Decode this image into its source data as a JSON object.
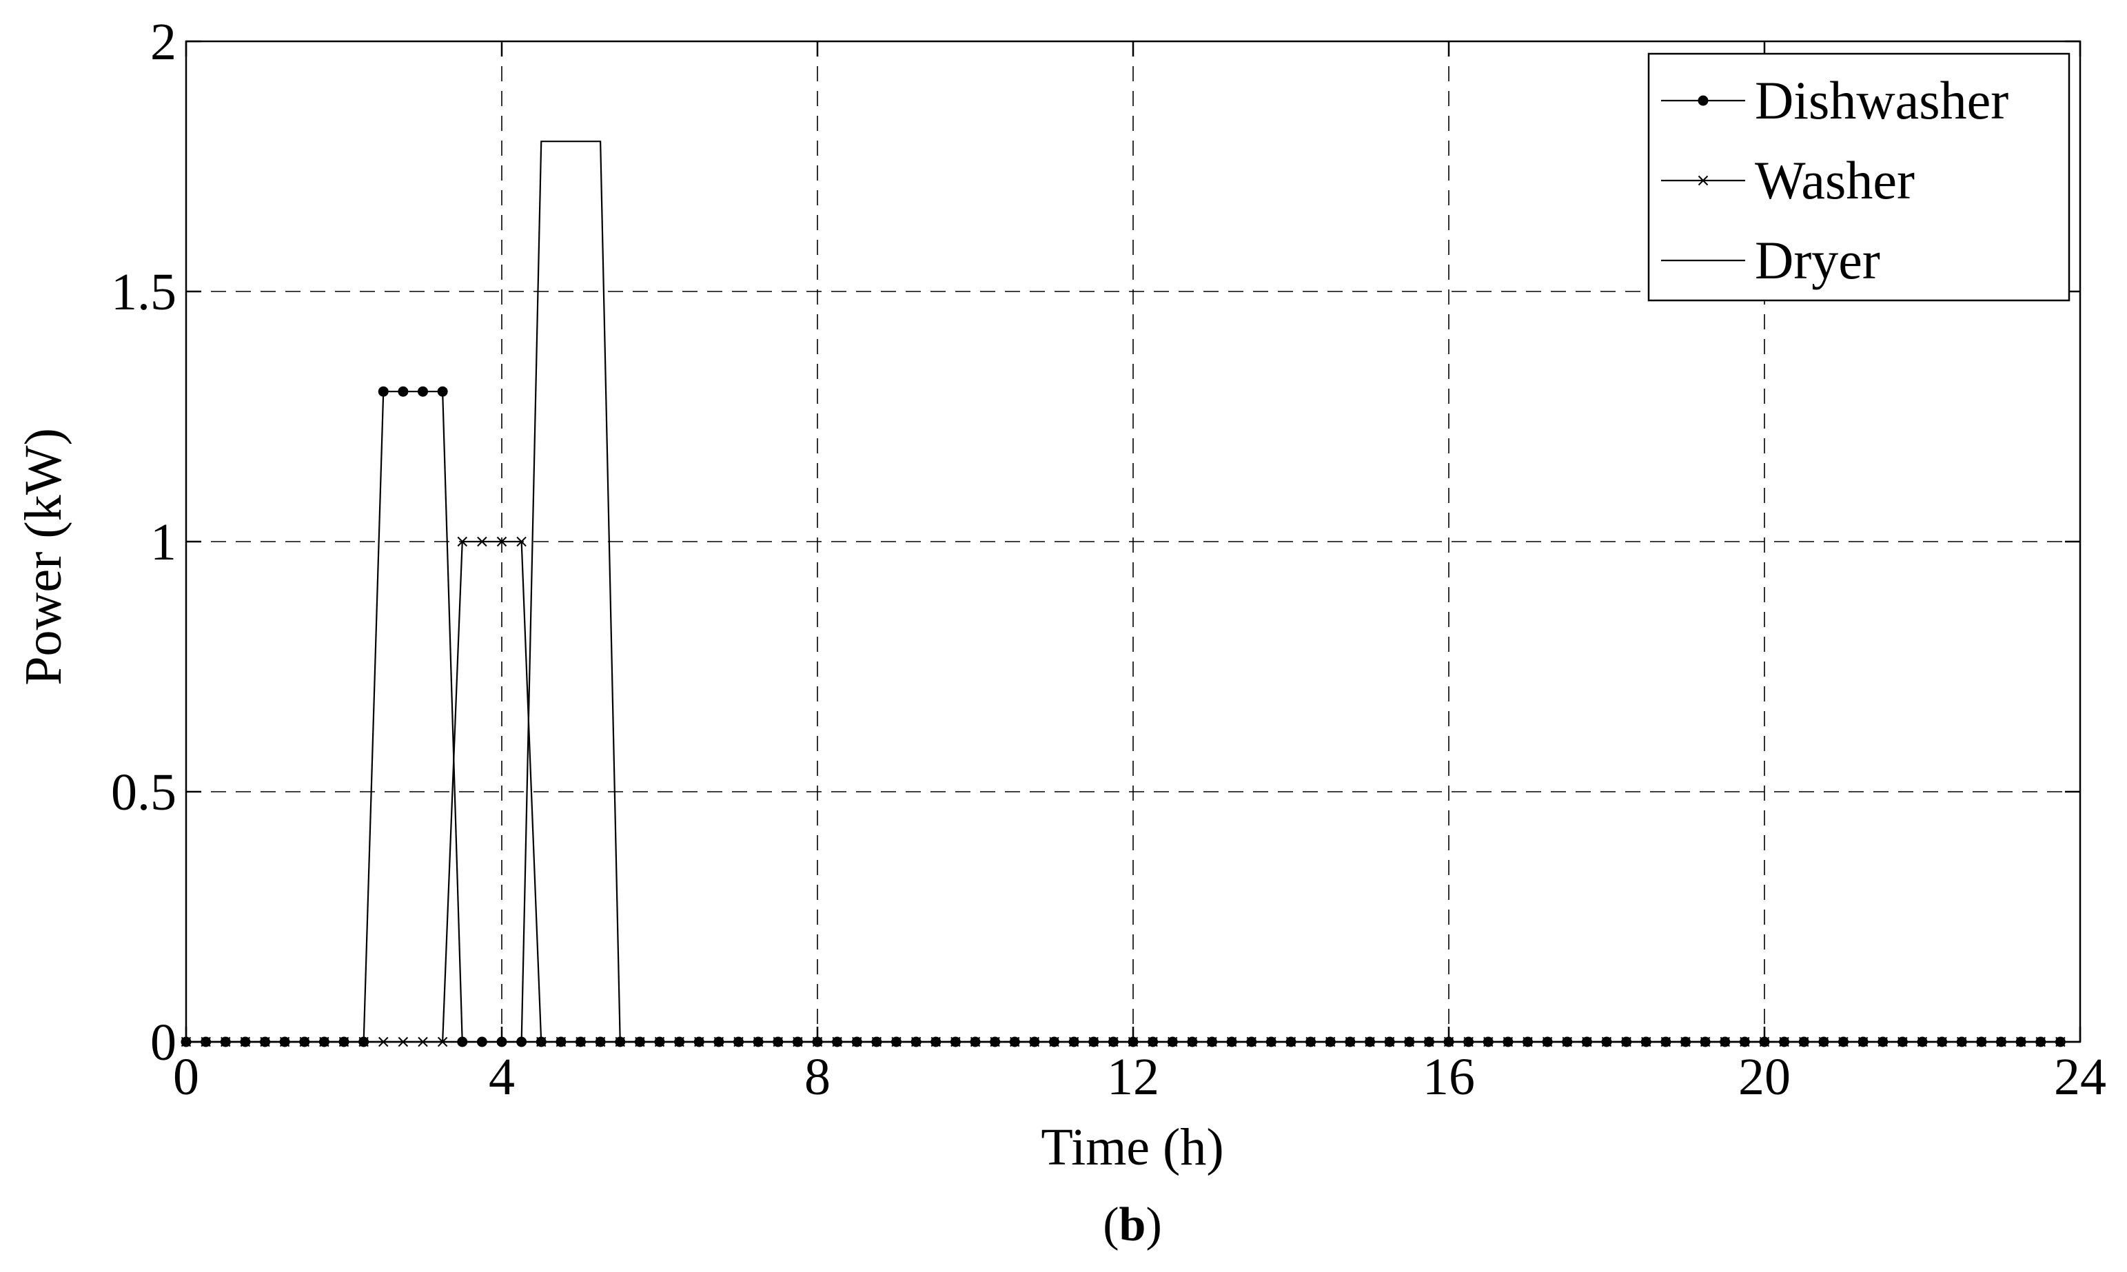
{
  "chart_data": {
    "type": "line",
    "xlabel": "Time (h)",
    "ylabel": "Power (kW)",
    "caption_label": "b",
    "caption_open": "(",
    "caption_close": ")",
    "xlim": [
      0,
      24
    ],
    "ylim": [
      0,
      2
    ],
    "xticks": [
      0,
      4,
      8,
      12,
      16,
      20,
      24
    ],
    "yticks": [
      0,
      0.5,
      1,
      1.5,
      2
    ],
    "xtick_labels": [
      "0",
      "4",
      "8",
      "12",
      "16",
      "20",
      "24"
    ],
    "ytick_labels": [
      "0",
      "0.5",
      "1",
      "1.5",
      "2"
    ],
    "grid": true,
    "legend_position": "top-right",
    "x": [
      0,
      0.25,
      0.5,
      0.75,
      1,
      1.25,
      1.5,
      1.75,
      2,
      2.25,
      2.5,
      2.75,
      3,
      3.25,
      3.5,
      3.75,
      4,
      4.25,
      4.5,
      4.75,
      5,
      5.25,
      5.5,
      5.75,
      6,
      6.25,
      6.5,
      6.75,
      7,
      7.25,
      7.5,
      7.75,
      8,
      8.25,
      8.5,
      8.75,
      9,
      9.25,
      9.5,
      9.75,
      10,
      10.25,
      10.5,
      10.75,
      11,
      11.25,
      11.5,
      11.75,
      12,
      12.25,
      12.5,
      12.75,
      13,
      13.25,
      13.5,
      13.75,
      14,
      14.25,
      14.5,
      14.75,
      15,
      15.25,
      15.5,
      15.75,
      16,
      16.25,
      16.5,
      16.75,
      17,
      17.25,
      17.5,
      17.75,
      18,
      18.25,
      18.5,
      18.75,
      19,
      19.25,
      19.5,
      19.75,
      20,
      20.25,
      20.5,
      20.75,
      21,
      21.25,
      21.5,
      21.75,
      22,
      22.25,
      22.5,
      22.75,
      23,
      23.25,
      23.5,
      23.75
    ],
    "series": [
      {
        "name": "Dishwasher",
        "marker": "dot",
        "values": [
          0,
          0,
          0,
          0,
          0,
          0,
          0,
          0,
          0,
          0,
          1.3,
          1.3,
          1.3,
          1.3,
          0,
          0,
          0,
          0,
          0,
          0,
          0,
          0,
          0,
          0,
          0,
          0,
          0,
          0,
          0,
          0,
          0,
          0,
          0,
          0,
          0,
          0,
          0,
          0,
          0,
          0,
          0,
          0,
          0,
          0,
          0,
          0,
          0,
          0,
          0,
          0,
          0,
          0,
          0,
          0,
          0,
          0,
          0,
          0,
          0,
          0,
          0,
          0,
          0,
          0,
          0,
          0,
          0,
          0,
          0,
          0,
          0,
          0,
          0,
          0,
          0,
          0,
          0,
          0,
          0,
          0,
          0,
          0,
          0,
          0,
          0,
          0,
          0,
          0,
          0,
          0,
          0,
          0,
          0,
          0,
          0,
          0
        ]
      },
      {
        "name": "Washer",
        "marker": "x",
        "values": [
          0,
          0,
          0,
          0,
          0,
          0,
          0,
          0,
          0,
          0,
          0,
          0,
          0,
          0,
          1,
          1,
          1,
          1,
          0,
          0,
          0,
          0,
          0,
          0,
          0,
          0,
          0,
          0,
          0,
          0,
          0,
          0,
          0,
          0,
          0,
          0,
          0,
          0,
          0,
          0,
          0,
          0,
          0,
          0,
          0,
          0,
          0,
          0,
          0,
          0,
          0,
          0,
          0,
          0,
          0,
          0,
          0,
          0,
          0,
          0,
          0,
          0,
          0,
          0,
          0,
          0,
          0,
          0,
          0,
          0,
          0,
          0,
          0,
          0,
          0,
          0,
          0,
          0,
          0,
          0,
          0,
          0,
          0,
          0,
          0,
          0,
          0,
          0,
          0,
          0,
          0,
          0,
          0,
          0,
          0,
          0
        ]
      },
      {
        "name": "Dryer",
        "marker": "none",
        "values": [
          0,
          0,
          0,
          0,
          0,
          0,
          0,
          0,
          0,
          0,
          0,
          0,
          0,
          0,
          0,
          0,
          0,
          0,
          1.8,
          1.8,
          1.8,
          1.8,
          0,
          0,
          0,
          0,
          0,
          0,
          0,
          0,
          0,
          0,
          0,
          0,
          0,
          0,
          0,
          0,
          0,
          0,
          0,
          0,
          0,
          0,
          0,
          0,
          0,
          0,
          0,
          0,
          0,
          0,
          0,
          0,
          0,
          0,
          0,
          0,
          0,
          0,
          0,
          0,
          0,
          0,
          0,
          0,
          0,
          0,
          0,
          0,
          0,
          0,
          0,
          0,
          0,
          0,
          0,
          0,
          0,
          0,
          0,
          0,
          0,
          0,
          0,
          0,
          0,
          0,
          0,
          0,
          0,
          0,
          0,
          0,
          0,
          0
        ]
      }
    ]
  }
}
